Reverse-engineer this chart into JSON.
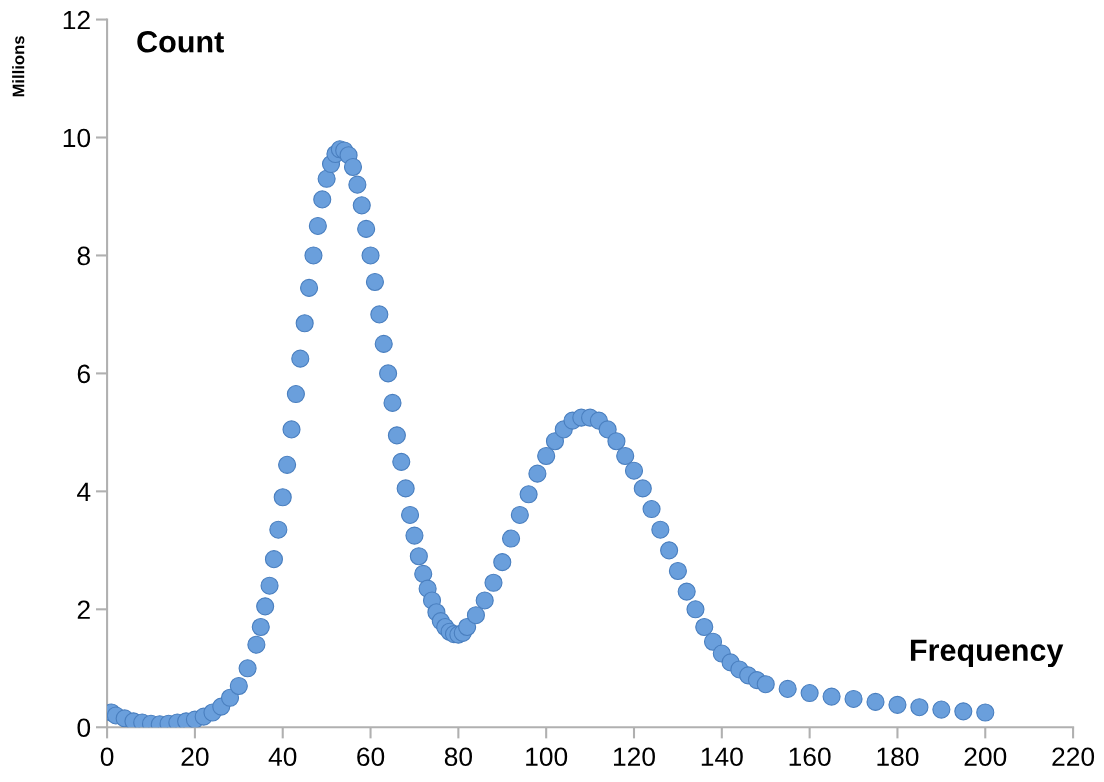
{
  "chart_data": {
    "type": "scatter",
    "title": "Count",
    "xlabel": "Frequency",
    "ylabel": "Millions",
    "x": [
      1,
      2,
      4,
      6,
      8,
      10,
      12,
      14,
      16,
      18,
      20,
      22,
      24,
      26,
      28,
      30,
      32,
      34,
      35,
      36,
      37,
      38,
      39,
      40,
      41,
      42,
      43,
      44,
      45,
      46,
      47,
      48,
      49,
      50,
      51,
      52,
      53,
      54,
      55,
      56,
      57,
      58,
      59,
      60,
      61,
      62,
      63,
      64,
      65,
      66,
      67,
      68,
      69,
      70,
      71,
      72,
      73,
      74,
      75,
      76,
      77,
      78,
      79,
      80,
      81,
      82,
      84,
      86,
      88,
      90,
      92,
      94,
      96,
      98,
      100,
      102,
      104,
      106,
      108,
      110,
      112,
      114,
      116,
      118,
      120,
      122,
      124,
      126,
      128,
      130,
      132,
      134,
      136,
      138,
      140,
      142,
      144,
      146,
      148,
      150,
      155,
      160,
      165,
      170,
      175,
      180,
      185,
      190,
      195,
      200
    ],
    "series": [
      {
        "color": "#6a9fdc",
        "values": [
          0.25,
          0.2,
          0.15,
          0.1,
          0.08,
          0.06,
          0.05,
          0.06,
          0.08,
          0.1,
          0.13,
          0.18,
          0.25,
          0.35,
          0.5,
          0.7,
          1.0,
          1.4,
          1.7,
          2.05,
          2.4,
          2.85,
          3.35,
          3.9,
          4.45,
          5.05,
          5.65,
          6.25,
          6.85,
          7.45,
          8.0,
          8.5,
          8.95,
          9.3,
          9.55,
          9.72,
          9.8,
          9.78,
          9.7,
          9.5,
          9.2,
          8.85,
          8.45,
          8.0,
          7.55,
          7.0,
          6.5,
          6.0,
          5.5,
          4.95,
          4.5,
          4.05,
          3.6,
          3.25,
          2.9,
          2.6,
          2.35,
          2.15,
          1.95,
          1.8,
          1.7,
          1.62,
          1.58,
          1.57,
          1.6,
          1.7,
          1.9,
          2.15,
          2.45,
          2.8,
          3.2,
          3.6,
          3.95,
          4.3,
          4.6,
          4.85,
          5.05,
          5.2,
          5.25,
          5.25,
          5.2,
          5.05,
          4.85,
          4.6,
          4.35,
          4.05,
          3.7,
          3.35,
          3.0,
          2.65,
          2.3,
          2.0,
          1.7,
          1.45,
          1.25,
          1.1,
          0.98,
          0.88,
          0.8,
          0.73,
          0.65,
          0.58,
          0.52,
          0.48,
          0.43,
          0.38,
          0.34,
          0.3,
          0.27,
          0.25
        ]
      }
    ],
    "xlim": [
      0,
      220
    ],
    "xticks": [
      0,
      20,
      40,
      60,
      80,
      100,
      120,
      140,
      160,
      180,
      200,
      220
    ],
    "ylim": [
      0,
      12
    ],
    "yticks": [
      0,
      2,
      4,
      6,
      8,
      10,
      12
    ],
    "grid": false,
    "legend": false,
    "marker": "circle"
  }
}
